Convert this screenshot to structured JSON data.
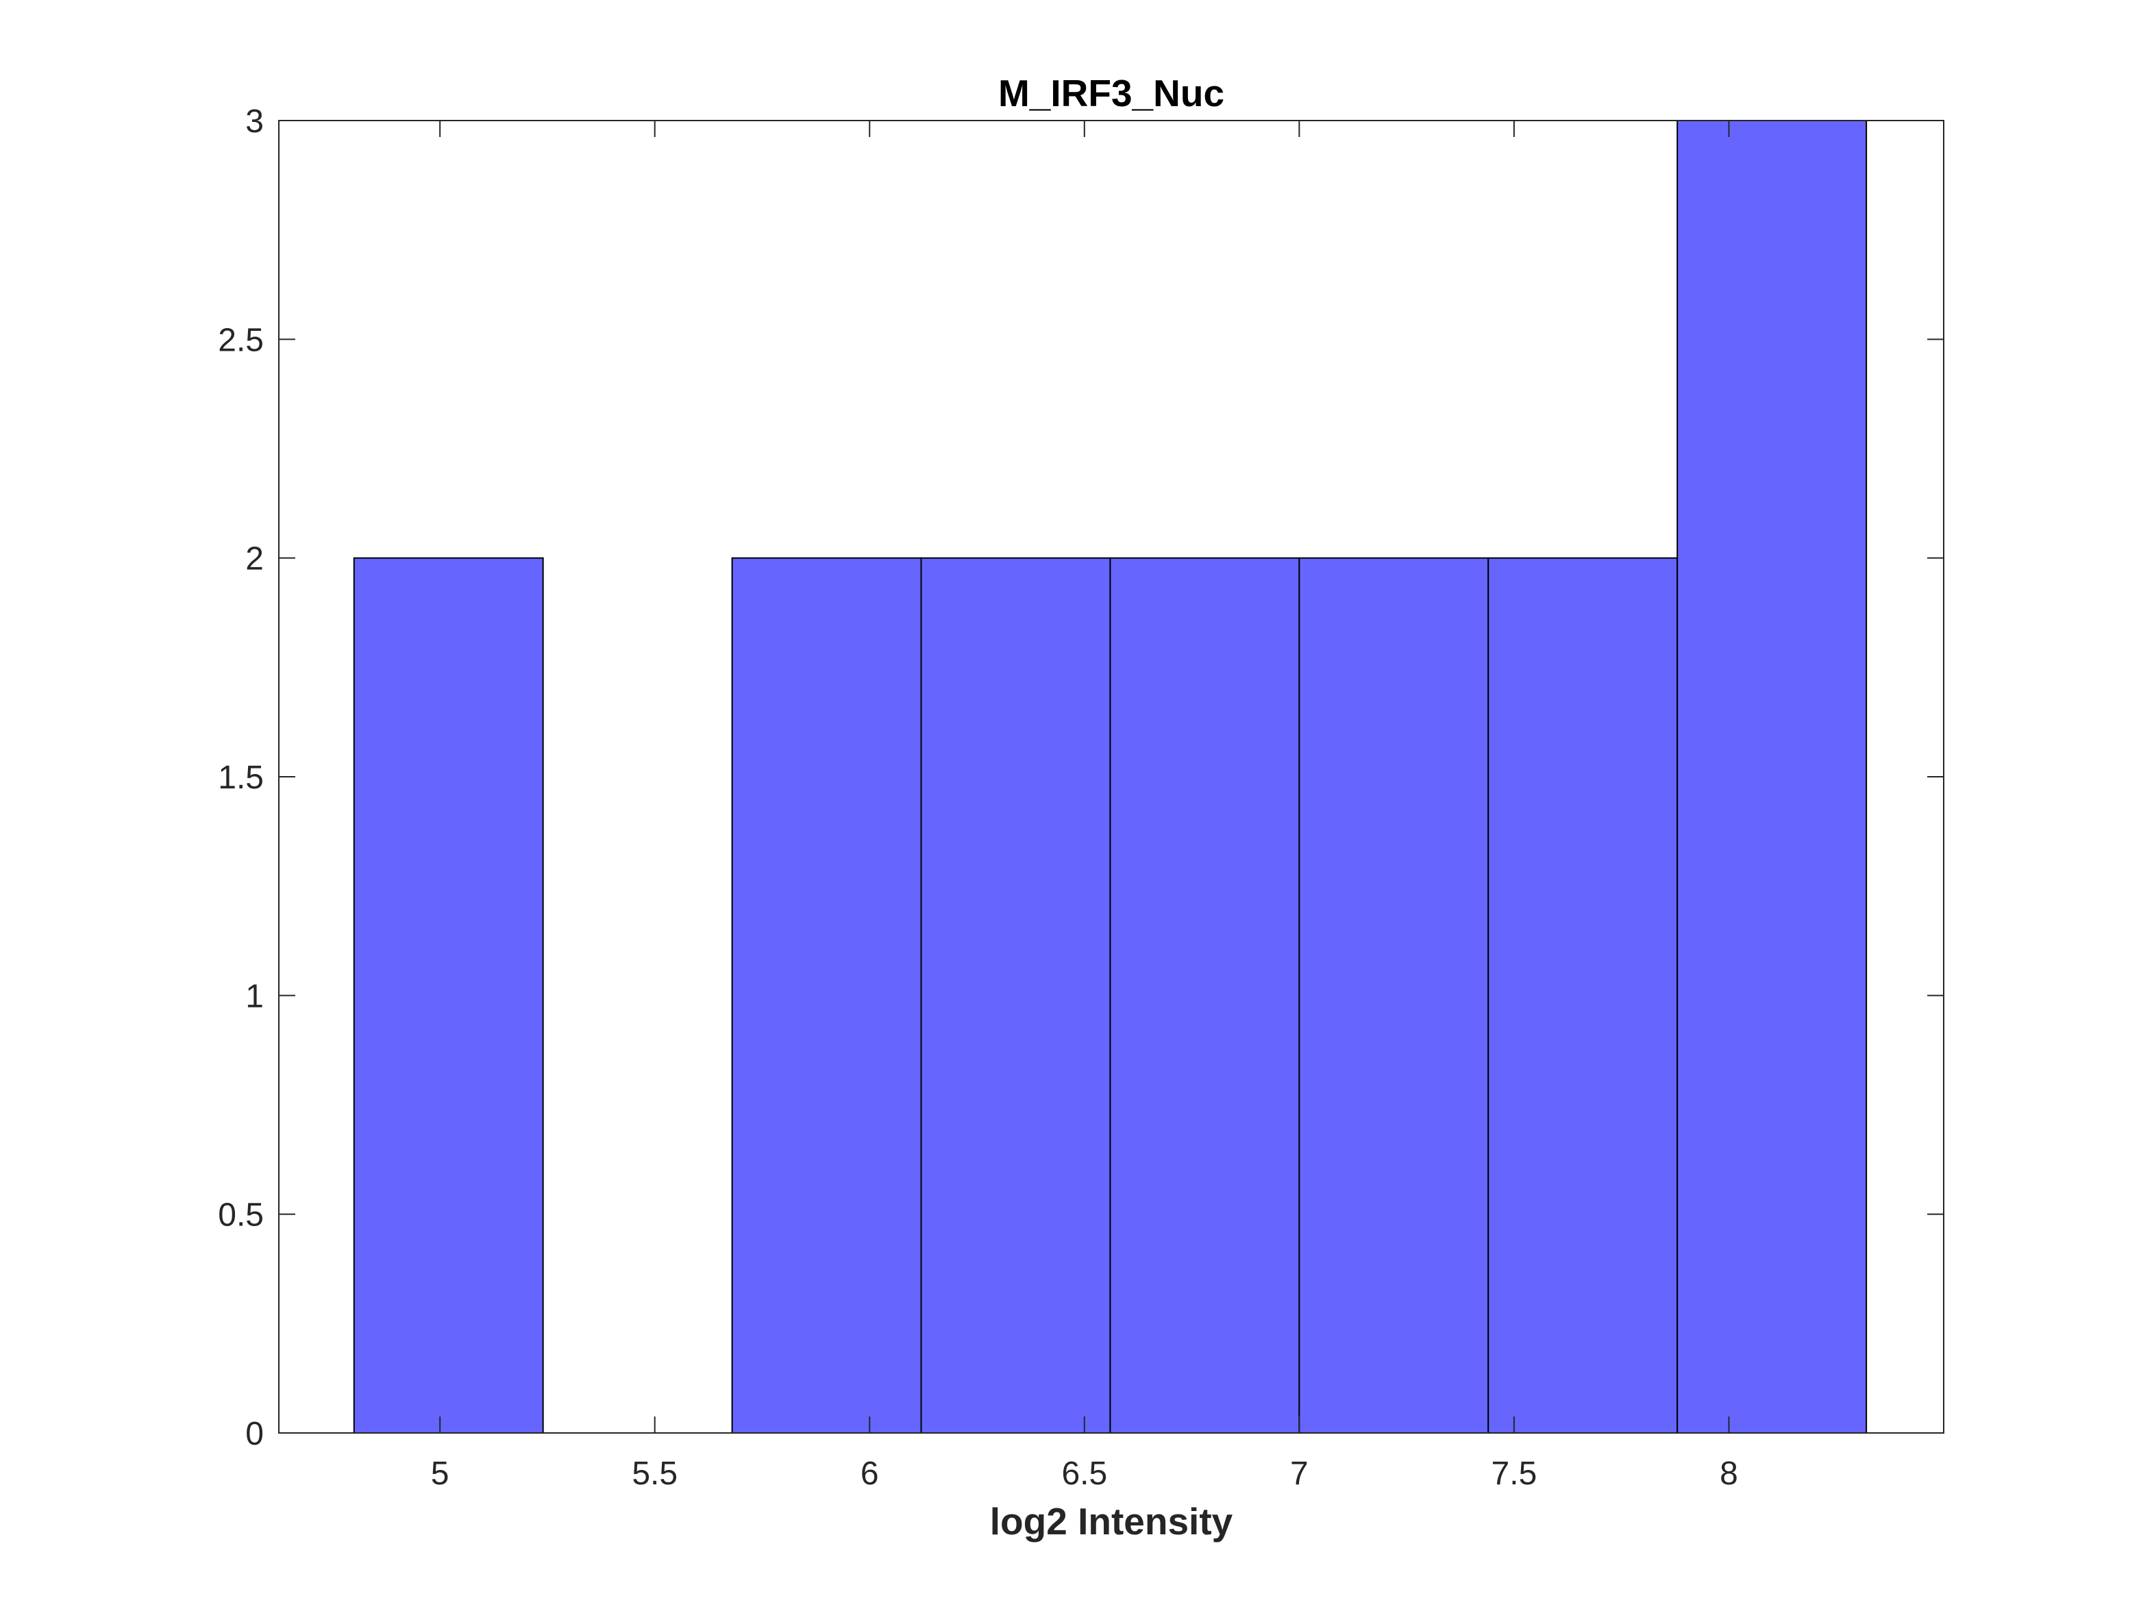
{
  "chart_data": {
    "type": "bar",
    "title": "M_IRF3_Nuc",
    "xlabel": "log2 Intensity",
    "ylabel": "",
    "xlim": [
      4.625,
      8.5
    ],
    "ylim": [
      0,
      3
    ],
    "xticks": [
      5,
      5.5,
      6,
      6.5,
      7,
      7.5,
      8
    ],
    "xtick_labels": [
      "5",
      "5.5",
      "6",
      "6.5",
      "7",
      "7.5",
      "8"
    ],
    "yticks": [
      0,
      0.5,
      1,
      1.5,
      2,
      2.5,
      3
    ],
    "ytick_labels": [
      "0",
      "0.5",
      "1",
      "1.5",
      "2",
      "2.5",
      "3"
    ],
    "bin_edges": [
      4.8,
      5.24,
      5.68,
      6.12,
      6.56,
      7.0,
      7.44,
      7.88,
      8.32
    ],
    "values": [
      2,
      0,
      2,
      2,
      2,
      2,
      2,
      3
    ],
    "grid": false,
    "bar_color": "#6666ff",
    "bar_edge_color": "#000000"
  }
}
